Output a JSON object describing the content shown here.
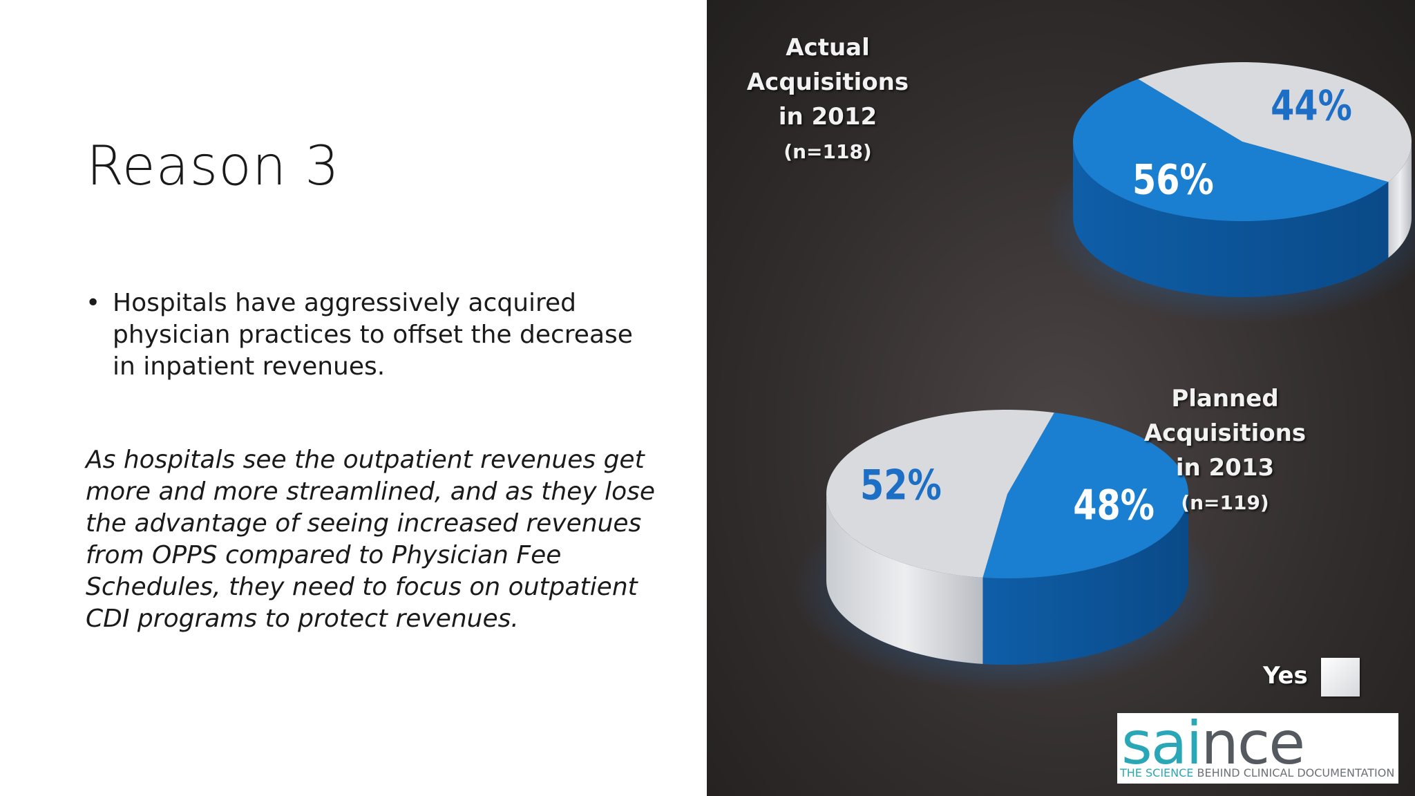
{
  "slide": {
    "title": "Reason 3",
    "bullet_symbol": "•",
    "bullet": "Hospitals have aggressively acquired physician practices to offset the decrease in inpatient revenues.",
    "paragraph": "As hospitals see the outpatient revenues get more and more streamlined, and as they lose the advantage of seeing increased revenues from OPPS compared to Physician Fee Schedules, they need to focus on outpatient CDI programs to protect revenues."
  },
  "chart_data": [
    {
      "type": "pie",
      "title_line1": "Actual Acquisitions",
      "title_line2": "in 2012",
      "title_line3": "(n=118)",
      "slices": [
        {
          "label": "Yes",
          "value": 44,
          "value_label": "44%",
          "color": "#d8dade"
        },
        {
          "label": "",
          "value": 56,
          "value_label": "56%",
          "color": "#1a7fd0"
        }
      ]
    },
    {
      "type": "pie",
      "title_line1": "Planned Acquisitions",
      "title_line2": "in 2013",
      "title_line3": "(n=119)",
      "slices": [
        {
          "label": "",
          "value": 48,
          "value_label": "48%",
          "color": "#1a7fd0"
        },
        {
          "label": "Yes",
          "value": 52,
          "value_label": "52%",
          "color": "#d8dade"
        }
      ]
    }
  ],
  "legend": {
    "label": "Yes",
    "swatch_color": "#e4e6e9"
  },
  "logo": {
    "word_part1": "sa",
    "word_part2": "i",
    "word_part3": "nce",
    "tagline_part1": "THE SCIENCE",
    "tagline_part2": " BEHIND CLINICAL DOCUMENTATION"
  }
}
